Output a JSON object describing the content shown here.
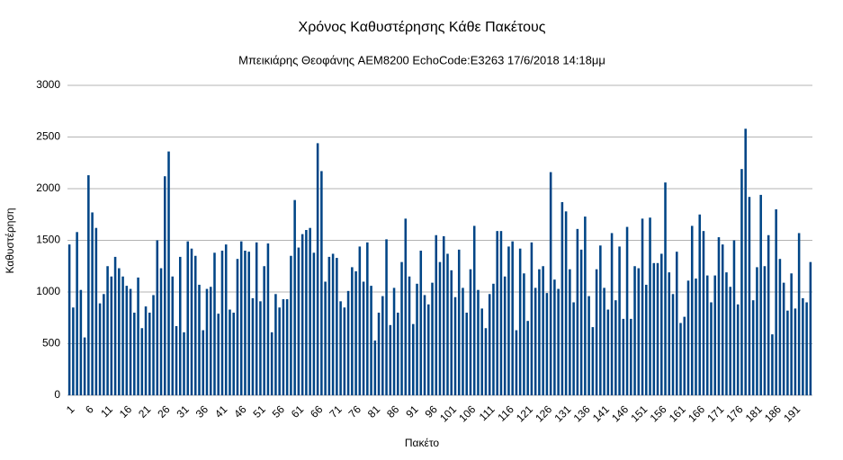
{
  "chart_data": {
    "type": "bar",
    "title": "Χρόνος Καθυστέρησης Κάθε Πακέτους",
    "subtitle": "Μπεικιάρης Θεοφάνης AEM8200 EchoCode:E3263 17/6/2018 14:18μμ",
    "x_label": "Πακέτο",
    "y_label": "Καθυστέρηση",
    "color": "#004586",
    "grid": true,
    "ylim": [
      0,
      3000
    ],
    "yticks": [
      0,
      500,
      1000,
      1500,
      2000,
      2500,
      3000
    ],
    "categories": [
      1,
      null,
      null,
      null,
      null,
      6,
      null,
      null,
      null,
      null,
      11,
      null,
      null,
      null,
      null,
      16,
      null,
      null,
      null,
      null,
      21,
      null,
      null,
      null,
      null,
      26,
      null,
      null,
      null,
      null,
      31,
      null,
      null,
      null,
      null,
      36,
      null,
      null,
      null,
      null,
      41,
      null,
      null,
      null,
      null,
      46,
      null,
      null,
      null,
      null,
      51,
      null,
      null,
      null,
      null,
      56,
      null,
      null,
      null,
      null,
      61,
      null,
      null,
      null,
      null,
      66,
      null,
      null,
      null,
      null,
      71,
      null,
      null,
      null,
      null,
      76,
      null,
      null,
      null,
      null,
      81,
      null,
      null,
      null,
      null,
      86,
      null,
      null,
      null,
      null,
      91,
      null,
      null,
      null,
      null,
      96,
      null,
      null,
      null,
      null,
      101,
      null,
      null,
      null,
      null,
      106,
      null,
      null,
      null,
      null,
      111,
      null,
      null,
      null,
      null,
      116,
      null,
      null,
      null,
      null,
      121,
      null,
      null,
      null,
      null,
      126,
      null,
      null,
      null,
      null,
      131,
      null,
      null,
      null,
      null,
      136,
      null,
      null,
      null,
      null,
      141,
      null,
      null,
      null,
      null,
      146,
      null,
      null,
      null,
      null,
      151,
      null,
      null,
      null,
      null,
      156,
      null,
      null,
      null,
      null,
      161,
      null,
      null,
      null,
      null,
      166,
      null,
      null,
      null,
      null,
      171,
      null,
      null,
      null,
      null,
      176,
      null,
      null,
      null,
      null,
      181,
      null,
      null,
      null,
      null,
      186,
      null,
      null,
      null,
      null,
      191,
      null,
      null,
      null,
      null
    ],
    "values": [
      1460,
      850,
      1580,
      1020,
      560,
      2130,
      1770,
      1620,
      890,
      980,
      1250,
      1150,
      1340,
      1230,
      1150,
      1060,
      1030,
      800,
      1140,
      650,
      860,
      800,
      970,
      1500,
      1230,
      2120,
      2360,
      1150,
      670,
      1340,
      610,
      1490,
      1420,
      1350,
      1070,
      630,
      1030,
      1050,
      1380,
      790,
      1400,
      1460,
      830,
      800,
      1320,
      1490,
      1400,
      1390,
      940,
      1480,
      910,
      1250,
      1470,
      610,
      980,
      850,
      930,
      930,
      1350,
      1890,
      1430,
      1560,
      1600,
      1620,
      1380,
      2440,
      2170,
      1100,
      1340,
      1370,
      1330,
      910,
      850,
      1010,
      1240,
      1200,
      1440,
      1100,
      1480,
      1060,
      530,
      800,
      960,
      1510,
      680,
      1040,
      800,
      1290,
      1710,
      1150,
      690,
      1080,
      1400,
      970,
      880,
      1090,
      1550,
      1290,
      1540,
      1370,
      1210,
      950,
      1410,
      1040,
      800,
      1220,
      1640,
      1020,
      840,
      650,
      980,
      1080,
      1590,
      1590,
      1150,
      1440,
      1490,
      630,
      1420,
      1180,
      720,
      1480,
      1040,
      1220,
      1250,
      990,
      2160,
      1120,
      1030,
      1870,
      1780,
      1220,
      900,
      1610,
      1410,
      1730,
      960,
      660,
      1220,
      1450,
      1040,
      830,
      1570,
      920,
      1440,
      740,
      1630,
      740,
      1250,
      1230,
      1710,
      1070,
      1720,
      1280,
      1280,
      1370,
      2060,
      1190,
      980,
      1390,
      700,
      760,
      1110,
      1640,
      1130,
      1750,
      1590,
      1160,
      900,
      1160,
      1530,
      1460,
      1190,
      1050,
      1500,
      880,
      2190,
      2580,
      1920,
      920,
      1240,
      1940,
      1250,
      1550,
      590,
      1800,
      1320,
      1090,
      820,
      1180,
      840,
      1570,
      940,
      900,
      1290
    ]
  }
}
